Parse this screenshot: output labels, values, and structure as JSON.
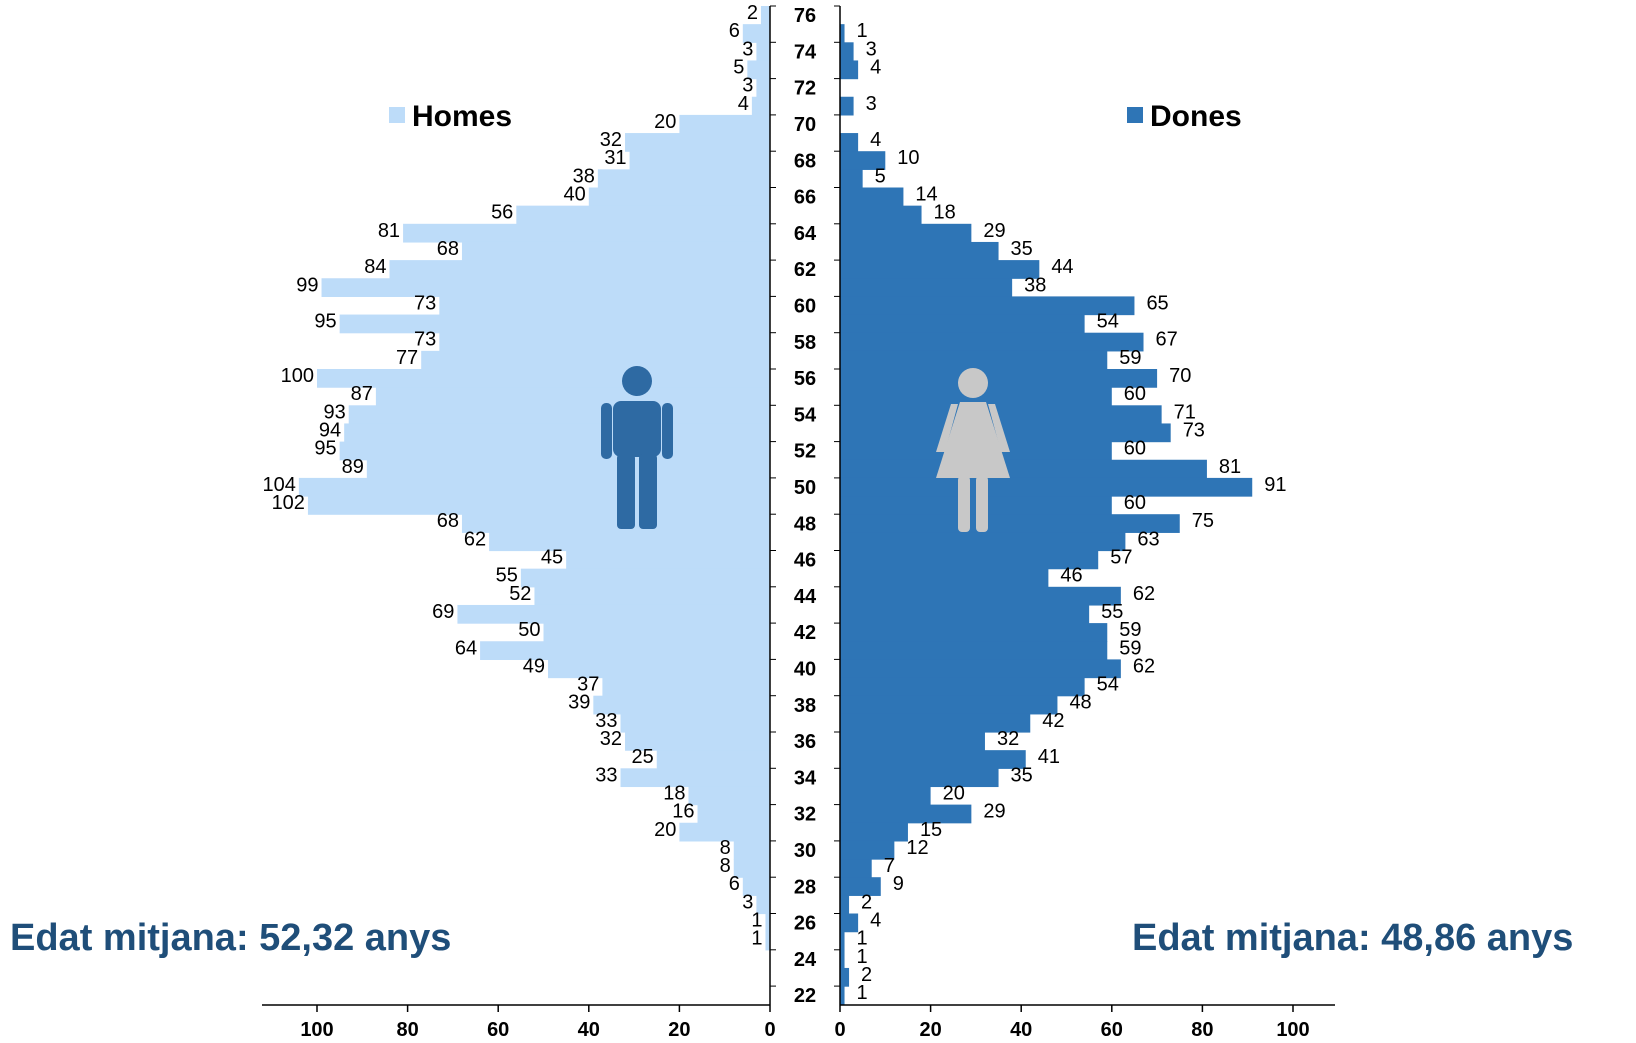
{
  "chart_data": {
    "type": "bar",
    "orientation": "horizontal-pyramid",
    "age_ticks": [
      "76",
      "74",
      "72",
      "70",
      "68",
      "66",
      "64",
      "62",
      "60",
      "58",
      "56",
      "54",
      "52",
      "50",
      "48",
      "46",
      "44",
      "42",
      "40",
      "38",
      "36",
      "34",
      "32",
      "30",
      "28",
      "26",
      "24",
      "22"
    ],
    "x_ticks_left": [
      "100",
      "80",
      "60",
      "40",
      "20",
      "0"
    ],
    "x_ticks_right": [
      "0",
      "20",
      "40",
      "60",
      "80",
      "100"
    ],
    "xlim": [
      0,
      110
    ],
    "series": [
      {
        "name": "Homes",
        "color": "#BDDCF9",
        "ages": [
          76,
          75,
          74,
          73,
          72,
          71,
          70,
          69,
          68,
          67,
          66,
          65,
          64,
          63,
          62,
          61,
          60,
          59,
          58,
          57,
          56,
          55,
          54,
          53,
          52,
          51,
          50,
          49,
          48,
          47,
          46,
          45,
          44,
          43,
          42,
          41,
          40,
          39,
          38,
          37,
          36,
          35,
          34,
          33,
          32,
          31,
          30,
          29,
          28,
          27,
          26,
          25,
          24
        ],
        "values": [
          2,
          6,
          3,
          5,
          3,
          4,
          20,
          32,
          31,
          38,
          40,
          56,
          81,
          68,
          84,
          99,
          73,
          95,
          73,
          77,
          100,
          87,
          93,
          94,
          95,
          89,
          104,
          102,
          68,
          62,
          45,
          55,
          52,
          69,
          50,
          64,
          49,
          37,
          39,
          33,
          32,
          25,
          33,
          18,
          16,
          20,
          8,
          8,
          6,
          3,
          1,
          1,
          0
        ],
        "labels": [
          "2",
          "6",
          "3",
          "5",
          "3",
          "4",
          "20",
          "32",
          "31",
          "38",
          "40",
          "56",
          "81",
          "68",
          "84",
          "99",
          "73",
          "95",
          "73",
          "77",
          "100",
          "87",
          "93",
          "94",
          "95",
          "89",
          "104",
          "102",
          "68",
          "62",
          "45",
          "55",
          "52",
          "69",
          "50",
          "64",
          "49",
          "37",
          "39",
          "33",
          "32",
          "25",
          "33",
          "18",
          "16",
          "20",
          "8",
          "8",
          "6",
          "3",
          "1",
          "1",
          ""
        ]
      },
      {
        "name": "Dones",
        "color": "#2E75B6",
        "ages": [
          75,
          74,
          73,
          71,
          69,
          68,
          67,
          66,
          65,
          64,
          63,
          62,
          61,
          60,
          59,
          58,
          57,
          56,
          55,
          54,
          53,
          52,
          51,
          50,
          49,
          48,
          47,
          46,
          45,
          44,
          43,
          42,
          41,
          40,
          39,
          38,
          37,
          36,
          35,
          34,
          33,
          32,
          31,
          30,
          29,
          28,
          27,
          26,
          25,
          24,
          23,
          22
        ],
        "values": [
          1,
          3,
          4,
          3,
          4,
          10,
          5,
          14,
          18,
          29,
          35,
          44,
          38,
          65,
          54,
          67,
          59,
          70,
          60,
          71,
          73,
          60,
          81,
          91,
          60,
          75,
          63,
          57,
          46,
          62,
          55,
          59,
          59,
          62,
          54,
          48,
          42,
          32,
          41,
          35,
          20,
          29,
          15,
          12,
          7,
          9,
          2,
          4,
          1,
          1,
          2,
          1
        ],
        "labels": [
          "1",
          "3",
          "4",
          "3",
          "4",
          "10",
          "5",
          "14",
          "18",
          "29",
          "35",
          "44",
          "38",
          "65",
          "54",
          "67",
          "59",
          "70",
          "60",
          "71",
          "73",
          "60",
          "81",
          "91",
          "60",
          "75",
          "63",
          "57",
          "46",
          "62",
          "55",
          "59",
          "59",
          "62",
          "54",
          "48",
          "42",
          "32",
          "41",
          "35",
          "20",
          "29",
          "15",
          "12",
          "7",
          "9",
          "2",
          "4",
          "1",
          "1",
          "2",
          "1"
        ]
      }
    ],
    "legend": [
      "Homes",
      "Dones"
    ],
    "grid": false
  },
  "annotations": {
    "mean_left": "Edat mitjana: 52,32 anys",
    "mean_right": "Edat mitjana: 48,86 anys",
    "mean_color": "#1F4E79"
  },
  "icons": {
    "left": "male-person-icon",
    "right": "female-person-icon",
    "male_color": "#2E6AA3",
    "female_color": "#C8C8C8"
  }
}
